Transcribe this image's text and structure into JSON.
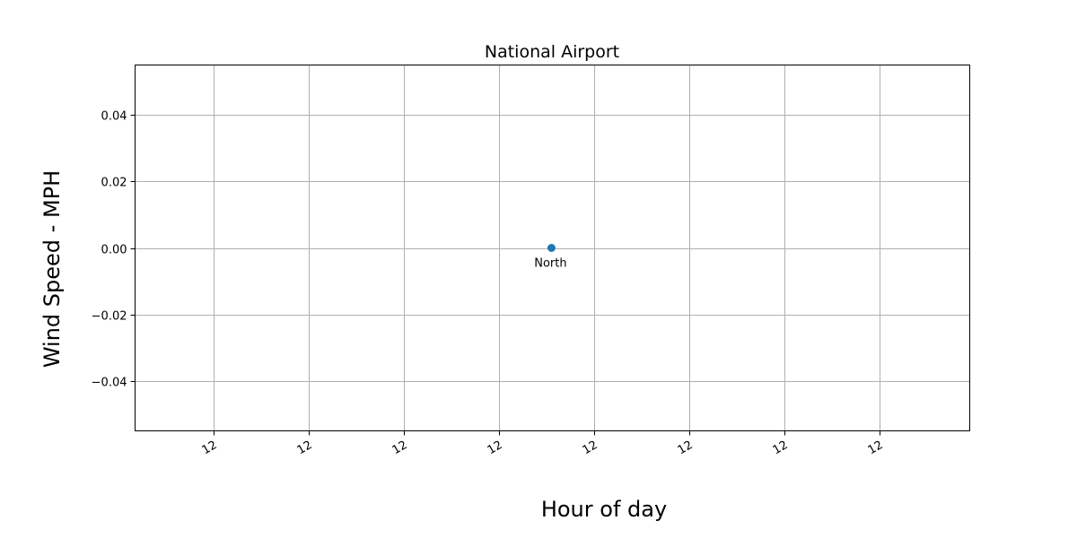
{
  "chart_data": {
    "type": "scatter",
    "title": "National Airport",
    "xlabel": "Hour of day",
    "ylabel": "Wind Speed - MPH",
    "ylim": [
      -0.055,
      0.055
    ],
    "xlim": [
      -0.83,
      7.95
    ],
    "grid": true,
    "y_ticks": [
      {
        "value": 0.04,
        "label": "0.04"
      },
      {
        "value": 0.02,
        "label": "0.02"
      },
      {
        "value": 0.0,
        "label": "0.00"
      },
      {
        "value": -0.02,
        "label": "−0.02"
      },
      {
        "value": -0.04,
        "label": "−0.04"
      }
    ],
    "x_ticks": [
      {
        "value": 0,
        "label": "12"
      },
      {
        "value": 1,
        "label": "12"
      },
      {
        "value": 2,
        "label": "12"
      },
      {
        "value": 3,
        "label": "12"
      },
      {
        "value": 4,
        "label": "12"
      },
      {
        "value": 5,
        "label": "12"
      },
      {
        "value": 6,
        "label": "12"
      },
      {
        "value": 7,
        "label": "12"
      }
    ],
    "points": [
      {
        "x": 3.55,
        "y": 0.0,
        "label": "North"
      }
    ],
    "point_color": "#1f77b4"
  }
}
